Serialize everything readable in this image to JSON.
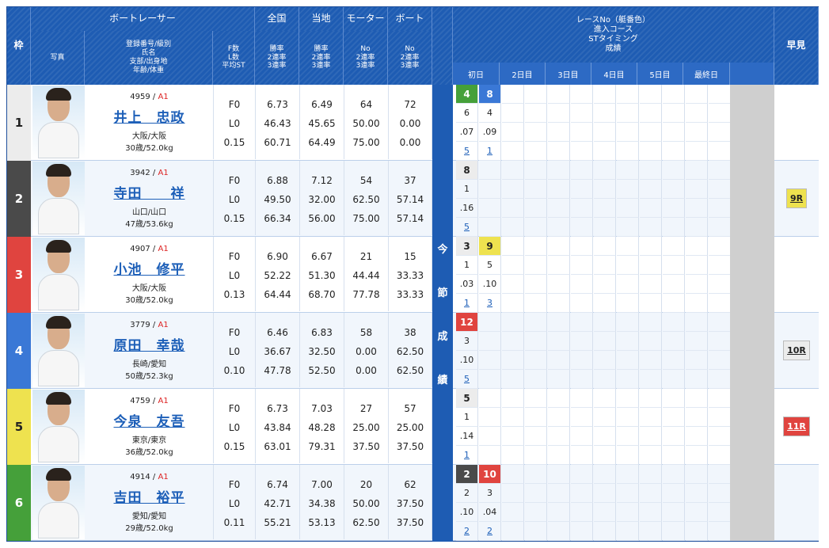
{
  "header": {
    "waku": "枠",
    "racer": "ボートレーサー",
    "photo": "写真",
    "profile_lines": [
      "登録番号/級別",
      "氏名",
      "支部/出身地",
      "年齢/体重"
    ],
    "fl_lines": [
      "F数",
      "L数",
      "平均ST"
    ],
    "zenkoku": "全国",
    "touchi": "当地",
    "motor": "モーター",
    "boat": "ボート",
    "rate_lines": [
      "勝率",
      "2連率",
      "3連率"
    ],
    "no_lines": [
      "No",
      "2連率",
      "3連率"
    ],
    "race_lines": [
      "レースNo（艇番色）",
      "進入コース",
      "STタイミング",
      "成績"
    ],
    "hayami": "早見",
    "days": [
      "初日",
      "2日目",
      "3日目",
      "4日目",
      "5日目",
      "最終日"
    ],
    "kon_chars": [
      "今",
      "節",
      "成",
      "績"
    ]
  },
  "racers": [
    {
      "lane": "1",
      "lane_color": "#ececec",
      "lane_text_color": "#222",
      "reg": "4959",
      "cls": "A1",
      "name": "井上　忠政",
      "branch": "大阪/大阪",
      "age": "30歳/52.0kg",
      "f": "F0",
      "l": "L0",
      "st": "0.15",
      "nat": [
        "6.73",
        "46.43",
        "60.71"
      ],
      "loc": [
        "6.49",
        "45.65",
        "64.49"
      ],
      "motor": [
        "64",
        "50.00",
        "75.00"
      ],
      "boat": [
        "72",
        "0.00",
        "0.00"
      ],
      "races": [
        [
          "4",
          "6",
          ".07",
          "5"
        ],
        [
          "8",
          "4",
          ".09",
          "1"
        ]
      ],
      "race_colors": [
        "#45a03a",
        "#3a78d6"
      ],
      "hayami": ""
    },
    {
      "lane": "2",
      "lane_color": "#4a4a4a",
      "lane_text_color": "#fff",
      "reg": "3942",
      "cls": "A1",
      "name": "寺田　　祥",
      "branch": "山口/山口",
      "age": "47歳/53.6kg",
      "f": "F0",
      "l": "L0",
      "st": "0.15",
      "nat": [
        "6.88",
        "49.50",
        "66.34"
      ],
      "loc": [
        "7.12",
        "32.00",
        "56.00"
      ],
      "motor": [
        "54",
        "62.50",
        "75.00"
      ],
      "boat": [
        "37",
        "57.14",
        "57.14"
      ],
      "races": [
        [
          "8",
          "1",
          ".16",
          "5"
        ]
      ],
      "race_colors": [
        "#ececec"
      ],
      "hayami": "9R",
      "hayami_color": "#eee24f"
    },
    {
      "lane": "3",
      "lane_color": "#e0443f",
      "lane_text_color": "#fff",
      "reg": "4907",
      "cls": "A1",
      "name": "小池　修平",
      "branch": "大阪/大阪",
      "age": "30歳/52.0kg",
      "f": "F0",
      "l": "L0",
      "st": "0.13",
      "nat": [
        "6.90",
        "52.22",
        "64.44"
      ],
      "loc": [
        "6.67",
        "51.30",
        "68.70"
      ],
      "motor": [
        "21",
        "44.44",
        "77.78"
      ],
      "boat": [
        "15",
        "33.33",
        "33.33"
      ],
      "races": [
        [
          "3",
          "1",
          ".03",
          "1"
        ],
        [
          "9",
          "5",
          ".10",
          "3"
        ]
      ],
      "race_colors": [
        "#ececec",
        "#eee24f"
      ],
      "hayami": ""
    },
    {
      "lane": "4",
      "lane_color": "#3a78d6",
      "lane_text_color": "#fff",
      "reg": "3779",
      "cls": "A1",
      "name": "原田　幸哉",
      "branch": "長崎/愛知",
      "age": "50歳/52.3kg",
      "f": "F0",
      "l": "L0",
      "st": "0.10",
      "nat": [
        "6.46",
        "36.67",
        "47.78"
      ],
      "loc": [
        "6.83",
        "32.50",
        "52.50"
      ],
      "motor": [
        "58",
        "0.00",
        "0.00"
      ],
      "boat": [
        "38",
        "62.50",
        "62.50"
      ],
      "races": [
        [
          "12",
          "3",
          ".10",
          "5"
        ]
      ],
      "race_colors": [
        "#e0443f"
      ],
      "hayami": "10R",
      "hayami_color": "#ececec"
    },
    {
      "lane": "5",
      "lane_color": "#eee24f",
      "lane_text_color": "#222",
      "reg": "4759",
      "cls": "A1",
      "name": "今泉　友吾",
      "branch": "東京/東京",
      "age": "36歳/52.0kg",
      "f": "F0",
      "l": "L0",
      "st": "0.15",
      "nat": [
        "6.73",
        "43.84",
        "63.01"
      ],
      "loc": [
        "7.03",
        "48.28",
        "79.31"
      ],
      "motor": [
        "27",
        "25.00",
        "37.50"
      ],
      "boat": [
        "57",
        "25.00",
        "37.50"
      ],
      "races": [
        [
          "5",
          "1",
          ".14",
          "1"
        ]
      ],
      "race_colors": [
        "#ececec"
      ],
      "hayami": "11R",
      "hayami_color": "#e0443f"
    },
    {
      "lane": "6",
      "lane_color": "#45a03a",
      "lane_text_color": "#fff",
      "reg": "4914",
      "cls": "A1",
      "name": "吉田　裕平",
      "branch": "愛知/愛知",
      "age": "29歳/52.0kg",
      "f": "F0",
      "l": "L0",
      "st": "0.11",
      "nat": [
        "6.74",
        "42.71",
        "55.21"
      ],
      "loc": [
        "7.00",
        "34.38",
        "53.13"
      ],
      "motor": [
        "20",
        "50.00",
        "62.50"
      ],
      "boat": [
        "62",
        "37.50",
        "37.50"
      ],
      "races": [
        [
          "2",
          "2",
          ".10",
          "2"
        ],
        [
          "10",
          "3",
          ".04",
          "2"
        ]
      ],
      "race_colors": [
        "#4a4a4a",
        "#e0443f"
      ],
      "hayami": ""
    }
  ]
}
